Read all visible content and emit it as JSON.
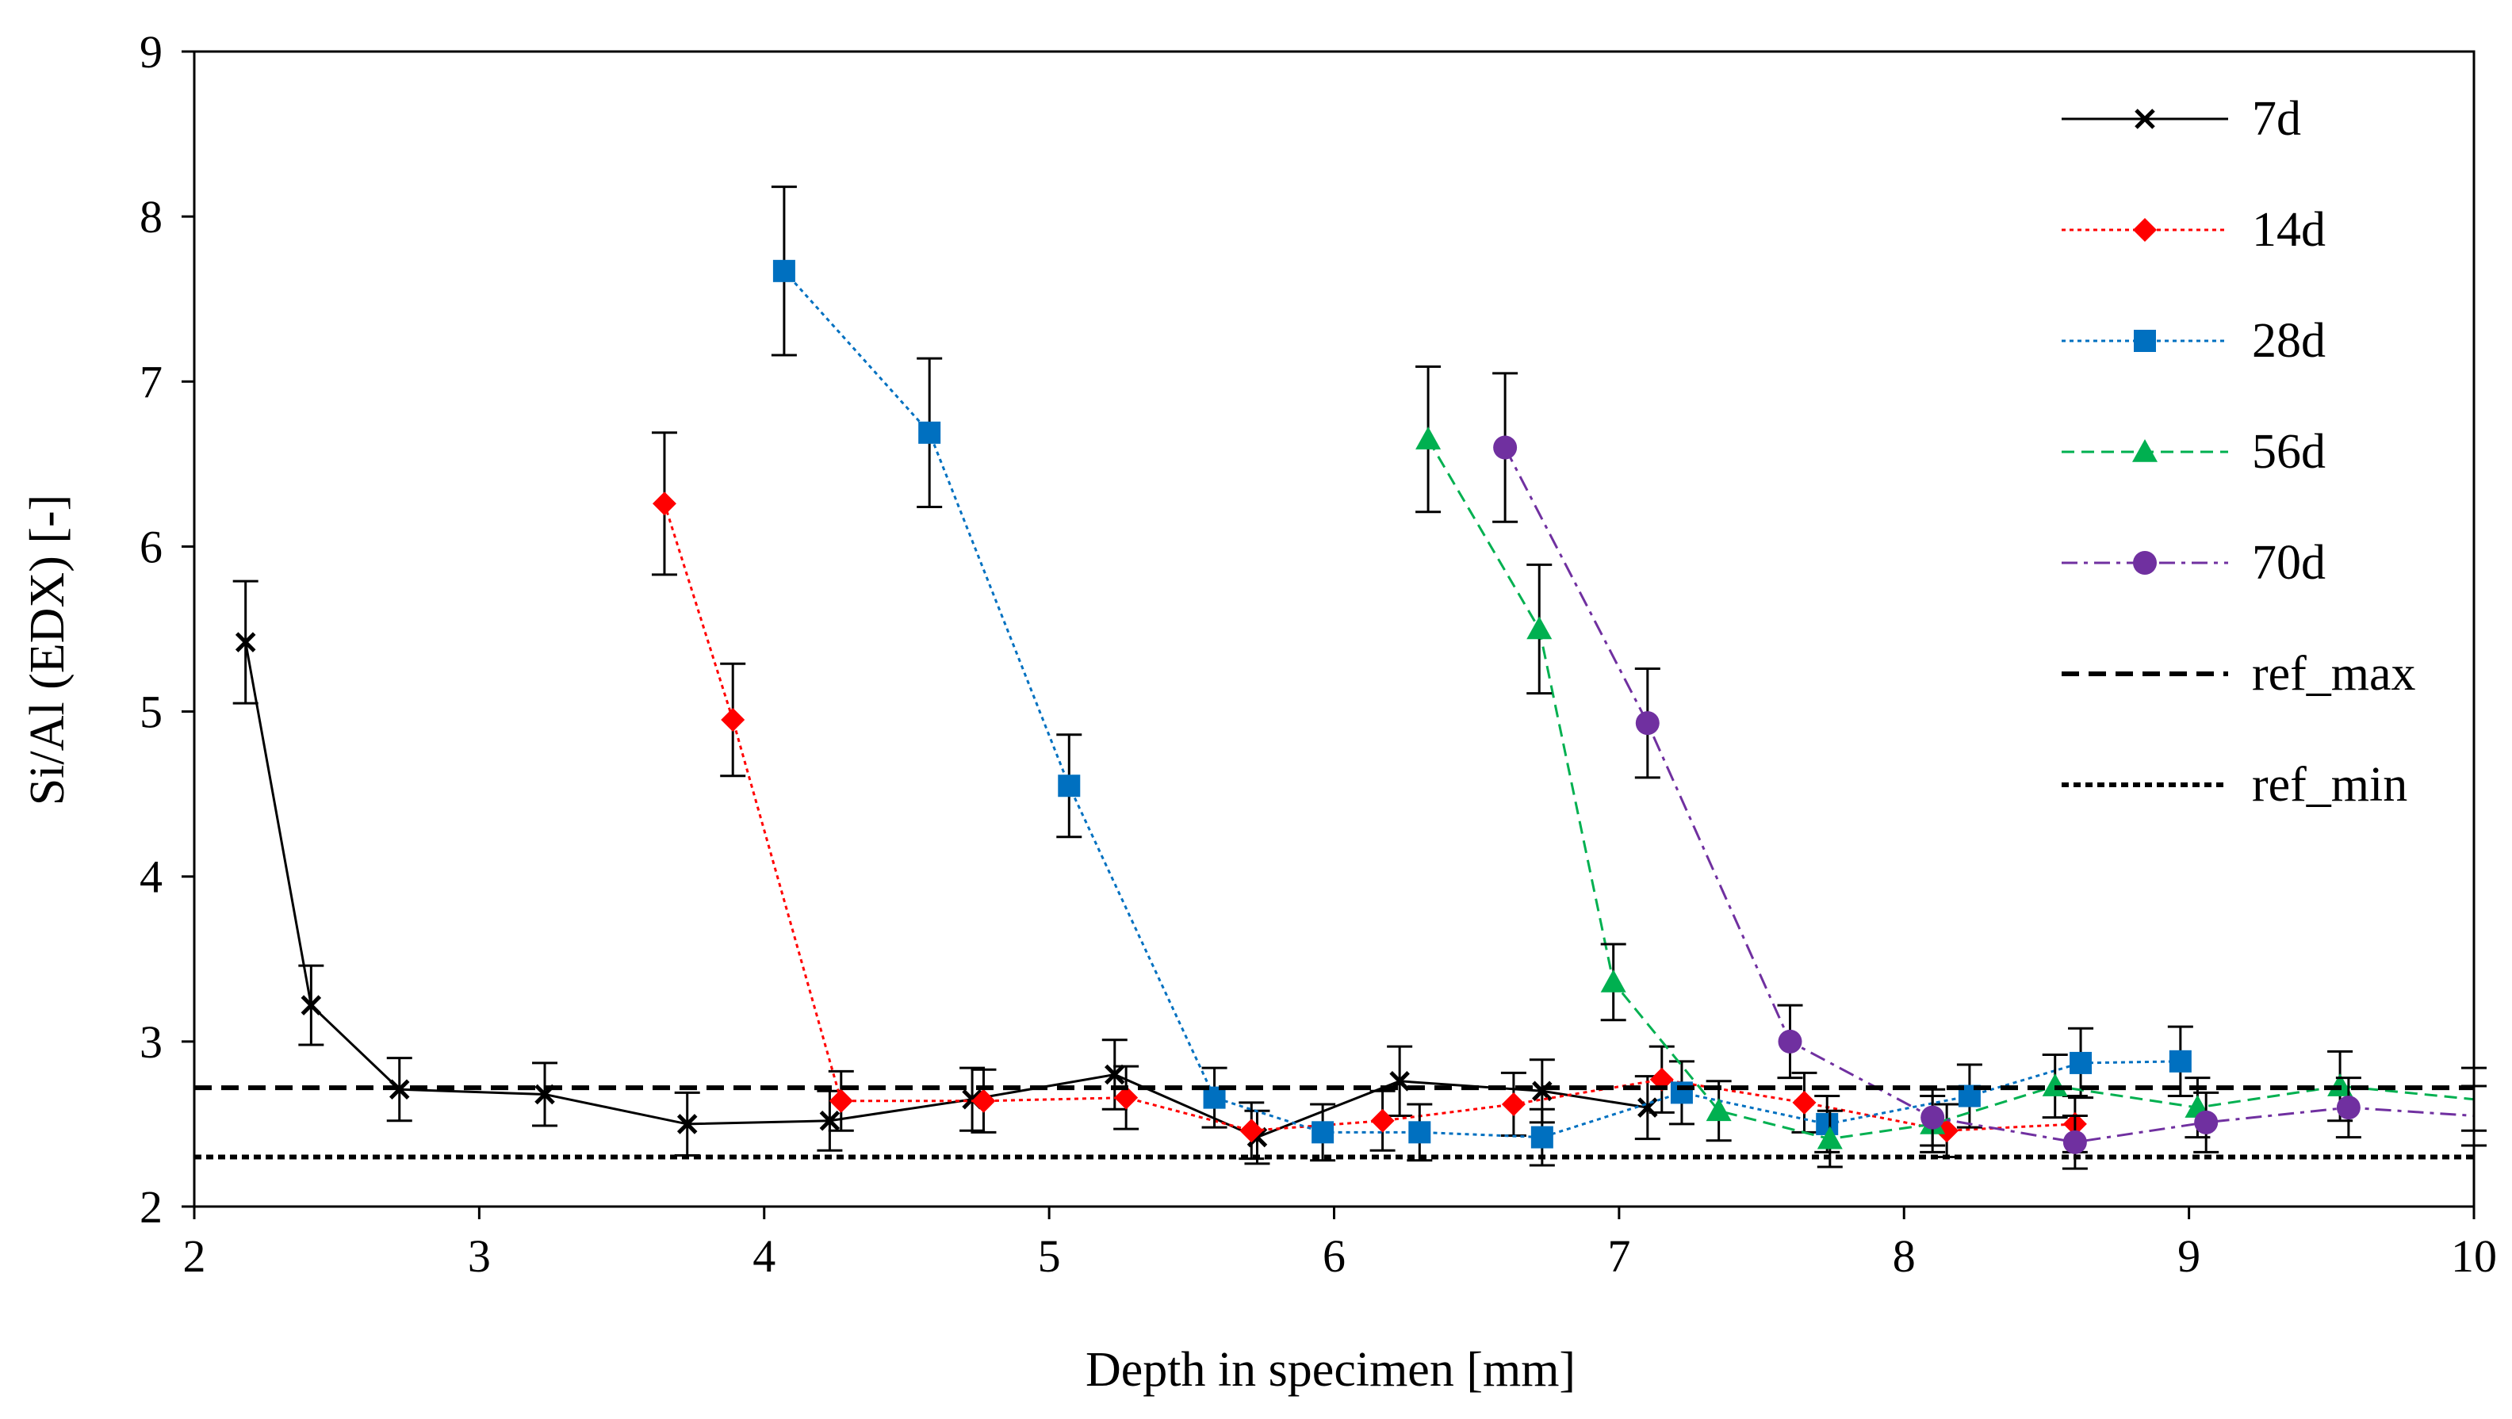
{
  "chart_data": {
    "type": "line",
    "title": "",
    "xlabel": "Depth in specimen [mm]",
    "ylabel": "Si/Al (EDX) [-]",
    "xlim": [
      2,
      10
    ],
    "ylim": [
      2,
      9
    ],
    "xticks": [
      "2",
      "3",
      "4",
      "5",
      "6",
      "7",
      "8",
      "9",
      "10"
    ],
    "yticks": [
      "2",
      "3",
      "4",
      "5",
      "6",
      "7",
      "8",
      "9"
    ],
    "legend_position": "top-right",
    "series": [
      {
        "name": "7d",
        "color": "#000000",
        "marker": "x",
        "line_style": "solid",
        "x": [
          2.18,
          2.41,
          2.72,
          3.23,
          3.73,
          4.23,
          4.73,
          5.23,
          5.73,
          6.23,
          6.73,
          7.1
        ],
        "y": [
          5.42,
          3.22,
          2.71,
          2.68,
          2.5,
          2.52,
          2.65,
          2.8,
          2.42,
          2.76,
          2.7,
          2.6
        ],
        "err": [
          0.37,
          0.24,
          0.19,
          0.19,
          0.19,
          0.18,
          0.19,
          0.21,
          0.16,
          0.21,
          0.19,
          0.19
        ]
      },
      {
        "name": "14d",
        "color": "#ff0000",
        "marker": "diamond",
        "line_style": "dotted",
        "x": [
          3.65,
          3.89,
          4.27,
          4.77,
          5.27,
          5.71,
          6.17,
          6.63,
          7.15,
          7.65,
          8.15,
          8.6
        ],
        "y": [
          6.26,
          4.95,
          2.64,
          2.64,
          2.66,
          2.46,
          2.52,
          2.62,
          2.77,
          2.63,
          2.46,
          2.5
        ],
        "err": [
          0.43,
          0.34,
          0.18,
          0.19,
          0.19,
          0.17,
          0.18,
          0.19,
          0.2,
          0.18,
          0.16,
          0.17
        ]
      },
      {
        "name": "28d",
        "color": "#0070c0",
        "marker": "square",
        "line_style": "dotted",
        "x": [
          4.07,
          4.58,
          5.07,
          5.58,
          5.96,
          6.3,
          6.73,
          7.22,
          7.73,
          8.23,
          8.62,
          8.97
        ],
        "y": [
          7.67,
          6.69,
          4.55,
          2.66,
          2.45,
          2.45,
          2.42,
          2.69,
          2.5,
          2.67,
          2.87,
          2.88
        ],
        "err": [
          0.51,
          0.45,
          0.31,
          0.18,
          0.17,
          0.17,
          0.17,
          0.19,
          0.17,
          0.19,
          0.21,
          0.21
        ]
      },
      {
        "name": "56d",
        "color": "#00b050",
        "marker": "triangle",
        "line_style": "dashed",
        "x": [
          6.33,
          6.72,
          6.98,
          7.35,
          7.74,
          8.1,
          8.53,
          9.03,
          9.53,
          10.0
        ],
        "y": [
          6.65,
          5.5,
          3.36,
          2.58,
          2.41,
          2.5,
          2.73,
          2.6,
          2.73,
          2.65
        ],
        "err": [
          0.44,
          0.39,
          0.23,
          0.18,
          0.17,
          0.17,
          0.19,
          0.18,
          0.21,
          0.19
        ]
      },
      {
        "name": "70d",
        "color": "#7030a0",
        "marker": "circle",
        "line_style": "dashdot",
        "x": [
          6.6,
          7.1,
          7.6,
          8.1,
          8.6,
          9.06,
          9.56,
          10.0
        ],
        "y": [
          6.6,
          4.93,
          3.0,
          2.54,
          2.39,
          2.51,
          2.6,
          2.55
        ],
        "err": [
          0.45,
          0.33,
          0.22,
          0.17,
          0.16,
          0.18,
          0.18,
          0.18
        ]
      },
      {
        "name": "ref_max",
        "color": "#000000",
        "marker": "none",
        "line_style": "long-dash",
        "x": [
          2,
          10
        ],
        "y": [
          2.72,
          2.72
        ]
      },
      {
        "name": "ref_min",
        "color": "#000000",
        "marker": "none",
        "line_style": "short-dash",
        "x": [
          2,
          10
        ],
        "y": [
          2.3,
          2.3
        ]
      }
    ]
  }
}
